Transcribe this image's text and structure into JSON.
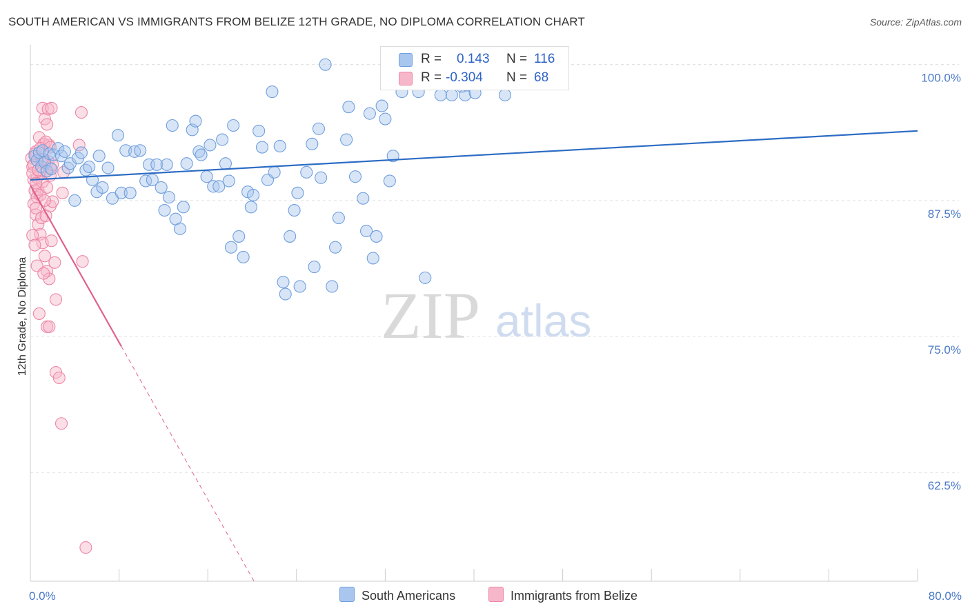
{
  "header": {
    "title": "SOUTH AMERICAN VS IMMIGRANTS FROM BELIZE 12TH GRADE, NO DIPLOMA CORRELATION CHART",
    "source": "Source: ZipAtlas.com"
  },
  "watermark": {
    "zip": "ZIP",
    "atlas": "atlas"
  },
  "colors": {
    "blue_fill": "#a9c6ee",
    "blue_stroke": "#6f9fdd",
    "blue_line": "#2d6cc4",
    "pink_fill": "#f6b7ca",
    "pink_stroke": "#ee86a6",
    "pink_line": "#e0608d",
    "grid": "#e2e2e2",
    "axis": "#cccccc"
  },
  "legend": {
    "rows": [
      {
        "r_label": "R =",
        "r_value": "0.143",
        "n_label": "N =",
        "n_value": "116"
      },
      {
        "r_label": "R =",
        "r_value": "-0.304",
        "n_label": "N =",
        "n_value": "68"
      }
    ]
  },
  "bottom_legend": {
    "items": [
      "South Americans",
      "Immigrants from Belize"
    ]
  },
  "chart_data": {
    "type": "scatter",
    "title": "SOUTH AMERICAN VS IMMIGRANTS FROM BELIZE 12TH GRADE, NO DIPLOMA CORRELATION CHART",
    "xlabel": "",
    "ylabel": "12th Grade, No Diploma",
    "xlim": [
      0,
      80
    ],
    "ylim": [
      52.5,
      101.5
    ],
    "x_tick_labels": [
      "0.0%",
      "80.0%"
    ],
    "y_ticks": [
      100,
      87.5,
      75,
      62.5
    ],
    "y_tick_labels": [
      "100.0%",
      "87.5%",
      "75.0%",
      "62.5%"
    ],
    "grid": true,
    "legend_position": "top-center",
    "series": [
      {
        "name": "South Americans",
        "r": 0.143,
        "n": 116,
        "trend": {
          "x": [
            0,
            80
          ],
          "y": [
            89.4,
            93.9
          ],
          "extrapolated_to": null
        },
        "points": [
          [
            0.4,
            91.6
          ],
          [
            0.6,
            91.2
          ],
          [
            0.8,
            91.9
          ],
          [
            1.0,
            90.6
          ],
          [
            1.1,
            92.1
          ],
          [
            1.3,
            91.0
          ],
          [
            1.5,
            90.2
          ],
          [
            1.7,
            91.8
          ],
          [
            1.9,
            90.4
          ],
          [
            2.1,
            91.7
          ],
          [
            2.5,
            92.3
          ],
          [
            2.8,
            91.6
          ],
          [
            3.1,
            92.0
          ],
          [
            3.4,
            90.5
          ],
          [
            3.6,
            90.9
          ],
          [
            4.0,
            87.5
          ],
          [
            4.3,
            91.4
          ],
          [
            4.6,
            91.9
          ],
          [
            5.0,
            90.3
          ],
          [
            5.3,
            90.6
          ],
          [
            5.6,
            89.4
          ],
          [
            6.0,
            88.3
          ],
          [
            6.2,
            91.6
          ],
          [
            6.5,
            88.7
          ],
          [
            7.0,
            90.5
          ],
          [
            7.4,
            87.7
          ],
          [
            7.9,
            93.5
          ],
          [
            8.2,
            88.2
          ],
          [
            8.6,
            92.1
          ],
          [
            9.0,
            88.2
          ],
          [
            9.4,
            92.0
          ],
          [
            9.9,
            92.1
          ],
          [
            10.4,
            89.3
          ],
          [
            10.7,
            90.8
          ],
          [
            11.0,
            89.4
          ],
          [
            11.4,
            90.8
          ],
          [
            11.8,
            88.7
          ],
          [
            12.1,
            86.6
          ],
          [
            12.3,
            90.8
          ],
          [
            12.5,
            87.8
          ],
          [
            12.8,
            94.4
          ],
          [
            13.1,
            85.8
          ],
          [
            13.5,
            84.9
          ],
          [
            13.8,
            86.9
          ],
          [
            14.1,
            90.9
          ],
          [
            14.6,
            94.0
          ],
          [
            14.9,
            94.8
          ],
          [
            15.2,
            92.0
          ],
          [
            15.4,
            91.7
          ],
          [
            15.9,
            89.7
          ],
          [
            16.2,
            92.6
          ],
          [
            16.5,
            88.8
          ],
          [
            17.0,
            88.8
          ],
          [
            17.3,
            93.1
          ],
          [
            17.6,
            90.9
          ],
          [
            17.9,
            89.3
          ],
          [
            18.3,
            94.4
          ],
          [
            18.1,
            83.2
          ],
          [
            18.8,
            84.2
          ],
          [
            19.2,
            82.3
          ],
          [
            19.6,
            88.3
          ],
          [
            19.9,
            86.9
          ],
          [
            20.1,
            88.0
          ],
          [
            20.6,
            93.9
          ],
          [
            20.9,
            92.4
          ],
          [
            21.4,
            89.4
          ],
          [
            21.8,
            97.5
          ],
          [
            22.0,
            90.1
          ],
          [
            22.5,
            92.5
          ],
          [
            22.8,
            80.0
          ],
          [
            23.0,
            78.9
          ],
          [
            23.4,
            84.2
          ],
          [
            23.8,
            86.6
          ],
          [
            24.1,
            88.2
          ],
          [
            24.3,
            79.6
          ],
          [
            24.9,
            90.1
          ],
          [
            25.4,
            92.7
          ],
          [
            25.6,
            81.4
          ],
          [
            26.0,
            94.1
          ],
          [
            26.2,
            89.6
          ],
          [
            26.6,
            100.0
          ],
          [
            27.2,
            79.6
          ],
          [
            27.5,
            83.2
          ],
          [
            27.8,
            85.9
          ],
          [
            28.5,
            93.1
          ],
          [
            28.7,
            96.1
          ],
          [
            29.3,
            89.7
          ],
          [
            30.0,
            87.7
          ],
          [
            30.3,
            84.7
          ],
          [
            30.6,
            95.5
          ],
          [
            30.9,
            82.2
          ],
          [
            31.2,
            84.2
          ],
          [
            31.7,
            96.2
          ],
          [
            32.0,
            95.0
          ],
          [
            32.4,
            89.3
          ],
          [
            32.7,
            91.6
          ],
          [
            33.0,
            99.0
          ],
          [
            33.5,
            97.5
          ],
          [
            33.8,
            99.4
          ],
          [
            35.0,
            97.5
          ],
          [
            35.6,
            80.4
          ],
          [
            39.2,
            97.2
          ],
          [
            40.2,
            98.8
          ],
          [
            40.7,
            99.6
          ],
          [
            42.8,
            97.2
          ],
          [
            43.3,
            99.6
          ],
          [
            38.3,
            99.3
          ],
          [
            38.8,
            100.0
          ],
          [
            44.3,
            99.8
          ],
          [
            38.9,
            98.0
          ],
          [
            38.0,
            97.2
          ],
          [
            37.0,
            97.2
          ],
          [
            37.7,
            99.0
          ],
          [
            39.4,
            98.1
          ],
          [
            40.1,
            97.4
          ],
          [
            40.6,
            98.4
          ]
        ]
      },
      {
        "name": "Immigrants from Belize",
        "r": -0.304,
        "n": 68,
        "trend": {
          "x": [
            0,
            8.2
          ],
          "y": [
            88.9,
            74.1
          ],
          "extrapolated_to": [
            21.5,
            50.0
          ]
        },
        "points": [
          [
            0.1,
            91.4
          ],
          [
            0.2,
            90.6
          ],
          [
            0.3,
            89.4
          ],
          [
            0.4,
            88.4
          ],
          [
            0.5,
            92.0
          ],
          [
            0.6,
            87.8
          ],
          [
            0.7,
            88.5
          ],
          [
            0.8,
            93.3
          ],
          [
            0.9,
            90.0
          ],
          [
            1.0,
            91.2
          ],
          [
            1.1,
            96.0
          ],
          [
            1.2,
            92.7
          ],
          [
            1.3,
            95.0
          ],
          [
            1.4,
            90.2
          ],
          [
            1.5,
            94.5
          ],
          [
            1.6,
            95.9
          ],
          [
            1.7,
            92.6
          ],
          [
            1.8,
            89.8
          ],
          [
            1.9,
            96.0
          ],
          [
            0.3,
            87.2
          ],
          [
            0.5,
            86.2
          ],
          [
            0.7,
            85.3
          ],
          [
            0.9,
            84.4
          ],
          [
            1.1,
            83.6
          ],
          [
            1.3,
            82.4
          ],
          [
            1.5,
            81.0
          ],
          [
            1.7,
            80.3
          ],
          [
            1.9,
            83.8
          ],
          [
            2.2,
            81.8
          ],
          [
            0.5,
            86.8
          ],
          [
            1.0,
            85.9
          ],
          [
            1.4,
            86.1
          ],
          [
            1.8,
            87.0
          ],
          [
            2.0,
            87.4
          ],
          [
            0.2,
            84.3
          ],
          [
            0.4,
            83.4
          ],
          [
            0.6,
            81.5
          ],
          [
            0.8,
            77.1
          ],
          [
            1.2,
            80.8
          ],
          [
            1.5,
            75.9
          ],
          [
            1.7,
            75.9
          ],
          [
            2.3,
            78.4
          ],
          [
            2.3,
            71.7
          ],
          [
            2.6,
            71.2
          ],
          [
            2.8,
            67.0
          ],
          [
            2.9,
            88.2
          ],
          [
            3.0,
            90.1
          ],
          [
            4.6,
            95.6
          ],
          [
            4.7,
            81.9
          ],
          [
            4.4,
            92.6
          ],
          [
            5.0,
            55.6
          ],
          [
            0.3,
            90.8
          ],
          [
            0.6,
            89.6
          ],
          [
            0.9,
            88.0
          ],
          [
            1.2,
            91.3
          ],
          [
            1.4,
            92.9
          ],
          [
            1.6,
            91.1
          ],
          [
            1.8,
            90.5
          ],
          [
            0.2,
            90.0
          ],
          [
            0.4,
            91.8
          ],
          [
            0.7,
            90.3
          ],
          [
            0.9,
            92.3
          ],
          [
            1.1,
            89.2
          ],
          [
            1.3,
            87.5
          ],
          [
            1.5,
            88.7
          ],
          [
            1.8,
            92.4
          ],
          [
            2.0,
            90.8
          ],
          [
            0.5,
            89.1
          ]
        ]
      }
    ]
  }
}
